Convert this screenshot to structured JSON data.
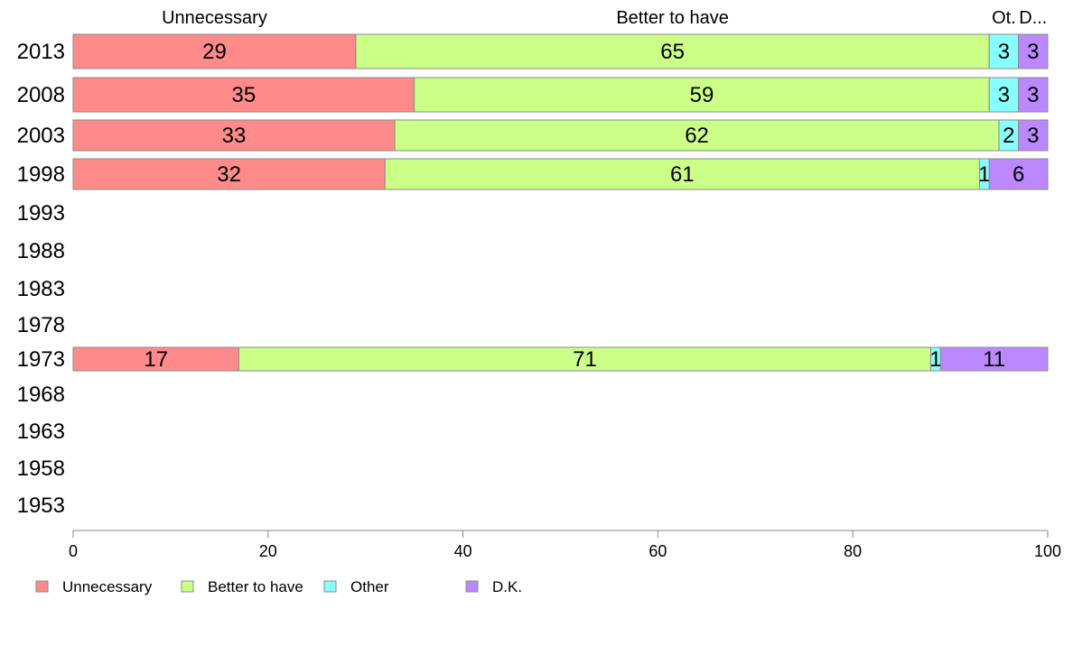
{
  "chart_data": {
    "type": "bar",
    "orientation": "horizontal",
    "stacked": true,
    "categories": [
      "2013",
      "2008",
      "2003",
      "1998",
      "1993",
      "1988",
      "1983",
      "1978",
      "1973",
      "1968",
      "1963",
      "1958",
      "1953"
    ],
    "series": [
      {
        "name": "Unnecessary",
        "values": [
          29,
          35,
          33,
          32,
          null,
          null,
          null,
          null,
          17,
          null,
          null,
          null,
          null
        ]
      },
      {
        "name": "Better to have",
        "values": [
          65,
          59,
          62,
          61,
          null,
          null,
          null,
          null,
          71,
          null,
          null,
          null,
          null
        ]
      },
      {
        "name": "Other",
        "values": [
          3,
          3,
          2,
          1,
          null,
          null,
          null,
          null,
          1,
          null,
          null,
          null,
          null
        ]
      },
      {
        "name": "D.K.",
        "values": [
          3,
          3,
          3,
          6,
          null,
          null,
          null,
          null,
          11,
          null,
          null,
          null,
          null
        ]
      }
    ],
    "top_labels": [
      "Unnecessary",
      "Better to have",
      "Ot.",
      "D..."
    ],
    "xlim": [
      0,
      100
    ],
    "xticks": [
      0,
      20,
      40,
      60,
      80,
      100
    ],
    "legend": {
      "position": "bottom-left",
      "entries": [
        "Unnecessary",
        "Better to have",
        "Other",
        "D.K."
      ]
    },
    "colors": [
      "#ff8a8a",
      "#ccff88",
      "#88ffff",
      "#bb88ff"
    ],
    "grid": false
  }
}
